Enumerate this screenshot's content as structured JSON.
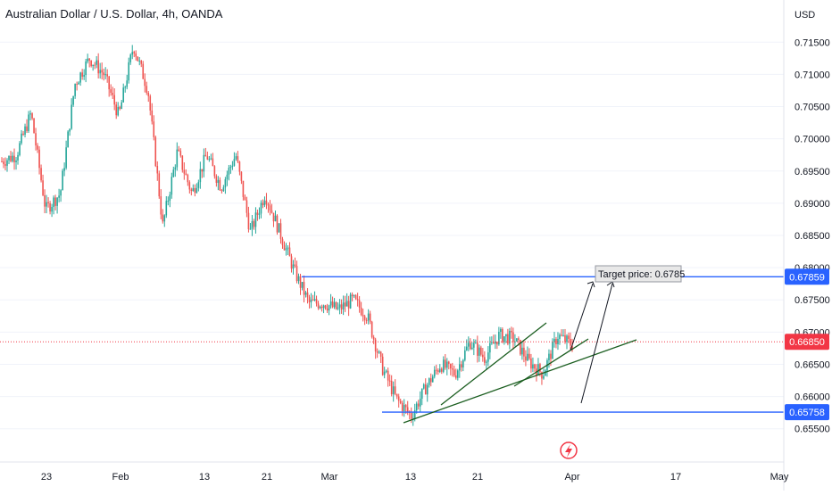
{
  "chart_data": {
    "type": "candlestick",
    "title": "Australian Dollar / U.S. Dollar, 4h, OANDA",
    "currency": "USD",
    "ylim": [
      0.6515,
      0.7185
    ],
    "y_ticks": [
      "0.71500",
      "0.71000",
      "0.70500",
      "0.70000",
      "0.69500",
      "0.69000",
      "0.68500",
      "0.68000",
      "0.67500",
      "0.67000",
      "0.66500",
      "0.66000",
      "0.65500"
    ],
    "y_tick_values": [
      0.715,
      0.71,
      0.705,
      0.7,
      0.695,
      0.69,
      0.685,
      0.68,
      0.675,
      0.67,
      0.665,
      0.66,
      0.655
    ],
    "x_ticks": [
      "23",
      "Feb",
      "13",
      "21",
      "Mar",
      "13",
      "21",
      "Apr",
      "17",
      "May"
    ],
    "price_path": [
      [
        0.6965,
        0.697
      ],
      [
        0.6975,
        0.6992
      ],
      [
        0.704,
        0.706
      ],
      [
        0.689,
        0.6895
      ],
      [
        0.6915,
        0.6935
      ],
      [
        0.7085,
        0.711
      ],
      [
        0.7125,
        0.713
      ],
      [
        0.71,
        0.7115
      ],
      [
        0.7035,
        0.705
      ],
      [
        0.7145,
        0.7155
      ],
      [
        0.7075,
        0.707
      ],
      [
        0.6865,
        0.686
      ],
      [
        0.698,
        0.698
      ],
      [
        0.6915,
        0.6925
      ],
      [
        0.6975,
        0.6985
      ],
      [
        0.6925,
        0.692
      ],
      [
        0.6975,
        0.6985
      ],
      [
        0.6855,
        0.684
      ],
      [
        0.6915,
        0.6925
      ],
      [
        0.6855,
        0.685
      ],
      [
        0.6795,
        0.678
      ],
      [
        0.6745,
        0.673
      ],
      [
        0.6745,
        0.675
      ],
      [
        0.6735,
        0.674
      ],
      [
        0.675,
        0.675
      ],
      [
        0.6725,
        0.672
      ],
      [
        0.6645,
        0.663
      ],
      [
        0.6595,
        0.6585
      ],
      [
        0.657,
        0.6575
      ],
      [
        0.6615,
        0.662
      ],
      [
        0.665,
        0.667
      ],
      [
        0.6635,
        0.6625
      ],
      [
        0.6685,
        0.668
      ],
      [
        0.666,
        0.6665
      ],
      [
        0.6695,
        0.671
      ],
      [
        0.669,
        0.6675
      ],
      [
        0.6655,
        0.664
      ],
      [
        0.6635,
        0.6645
      ],
      [
        0.6695,
        0.67
      ],
      [
        0.668,
        0.6685
      ]
    ],
    "levels": [
      {
        "name": "resistance",
        "value": 0.67859,
        "label": "0.67859",
        "color": "#2962ff"
      },
      {
        "name": "support",
        "value": 0.65758,
        "label": "0.65758",
        "color": "#2962ff"
      },
      {
        "name": "current",
        "value": 0.6685,
        "label": "0.66850",
        "color": "#f23645"
      }
    ],
    "annotation": {
      "text": "Target price: 0.6785"
    },
    "colors": {
      "up": "#26a69a",
      "down": "#ef5350",
      "trend": "#1b5e20",
      "level": "#2962ff",
      "current": "#f23645"
    }
  }
}
